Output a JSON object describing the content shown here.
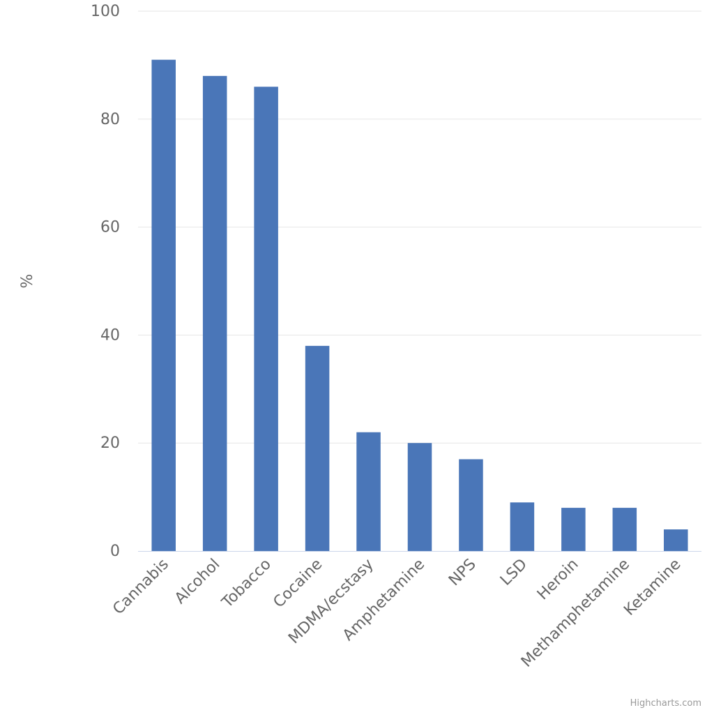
{
  "chart_data": {
    "type": "bar",
    "categories": [
      "Cannabis",
      "Alcohol",
      "Tobacco",
      "Cocaine",
      "MDMA/ecstasy",
      "Amphetamine",
      "NPS",
      "LSD",
      "Heroin",
      "Methamphetamine",
      "Ketamine"
    ],
    "series": [
      {
        "values": [
          91,
          88,
          86,
          38,
          22,
          20,
          17,
          9,
          8,
          8,
          4
        ]
      }
    ],
    "ylabel": "%",
    "ylim": [
      0,
      100
    ],
    "yticks": [
      0,
      20,
      40,
      60,
      80,
      100
    ],
    "grid": true,
    "legend": "none",
    "colors": {
      "bar": "#4a76b8",
      "grid": "#e6e6e6",
      "axis": "#ccd6eb",
      "label": "#666666"
    }
  },
  "credit": "Highcharts.com"
}
